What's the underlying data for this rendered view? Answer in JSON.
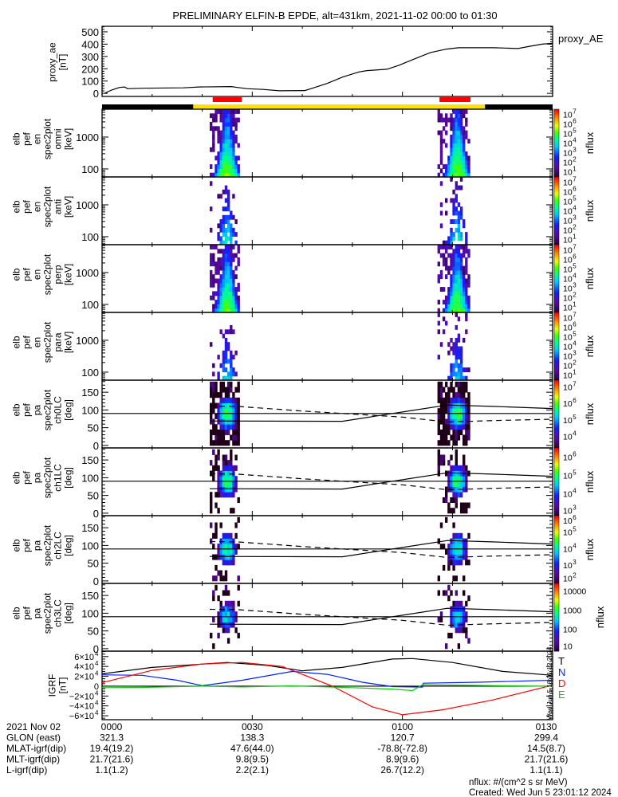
{
  "chart_data": {
    "type": "multi-panel",
    "title": "PRELIMINARY ELFIN-B EPDE, alt=431km, 2021-11-02 00:00 to 01:30",
    "time_range_min": [
      0,
      90
    ],
    "x_ticks": [
      "0000",
      "0030",
      "0100",
      "0130"
    ],
    "orbit_strip": {
      "colors": {
        "outside": "#000000",
        "science": "#ffe000",
        "marker": "#ff0000"
      },
      "science_interval_min": [
        18.2,
        76.5
      ],
      "markers_min": [
        [
          22.1,
          27.9
        ],
        [
          67.4,
          73.6
        ]
      ]
    },
    "proxy_ae": {
      "ylabel": [
        "proxy_ae",
        "[nT]"
      ],
      "legend": "proxy_AE",
      "ylim": [
        -25,
        545
      ],
      "yticks": [
        {
          "v": 0,
          "label": "0"
        },
        {
          "v": 100,
          "label": "100"
        },
        {
          "v": 200,
          "label": "200"
        },
        {
          "v": 300,
          "label": "300"
        },
        {
          "v": 400,
          "label": "400"
        },
        {
          "v": 500,
          "label": "500"
        }
      ],
      "t": [
        0.5,
        1.9,
        3.5,
        4.5,
        5.1,
        8.3,
        16.2,
        19.4,
        25.8,
        27,
        29,
        32.2,
        35.4,
        40.5,
        41.7,
        44.9,
        48.1,
        51.3,
        52.9,
        56.9,
        59.3,
        62.4,
        65.6,
        68.8,
        71.2,
        78.4,
        83.1,
        85.5,
        87.9,
        90
      ],
      "v": [
        0,
        27,
        48,
        52,
        38,
        42,
        45,
        52,
        55,
        48,
        38,
        32,
        21,
        23,
        38,
        80,
        133,
        174,
        185,
        196,
        228,
        280,
        332,
        360,
        371,
        371,
        364,
        383,
        400,
        407
      ]
    },
    "energy_panels": [
      {
        "name": "omni",
        "ylabel": [
          "elb",
          "pef",
          "en",
          "spec2plot",
          "omni",
          "[keV]"
        ],
        "peak_log_nflux": 5.4,
        "sparse": false
      },
      {
        "name": "anti",
        "ylabel": [
          "elb",
          "pef",
          "en",
          "spec2plot",
          "anti",
          "[keV]"
        ],
        "peak_log_nflux": 4.3,
        "sparse": true
      },
      {
        "name": "perp",
        "ylabel": [
          "elb",
          "pef",
          "en",
          "spec2plot",
          "perp",
          "[keV]"
        ],
        "peak_log_nflux": 5.3,
        "sparse": false
      },
      {
        "name": "para",
        "ylabel": [
          "elb",
          "pef",
          "en",
          "spec2plot",
          "para",
          "[keV]"
        ],
        "peak_log_nflux": 3.9,
        "sparse": true
      }
    ],
    "energy_axis": {
      "ylim_keV": [
        56,
        7500
      ],
      "yticks": [
        {
          "v": 100,
          "label": "100"
        },
        {
          "v": 1000,
          "label": "1000"
        }
      ]
    },
    "energy_colorbar": {
      "label": "nflux",
      "log_range": [
        0.9,
        7.5
      ],
      "ticks": [
        {
          "e": 1,
          "base": "10",
          "exp": "1"
        },
        {
          "e": 2,
          "base": "10",
          "exp": "2"
        },
        {
          "e": 3,
          "base": "10",
          "exp": "3"
        },
        {
          "e": 4,
          "base": "10",
          "exp": "4"
        },
        {
          "e": 5,
          "base": "10",
          "exp": "5"
        },
        {
          "e": 6,
          "base": "10",
          "exp": "6"
        },
        {
          "e": 7,
          "base": "10",
          "exp": "7"
        }
      ]
    },
    "events": [
      {
        "t_min": [
          21.5,
          27.5
        ],
        "center_min": 25
      },
      {
        "t_min": [
          67,
          73.5
        ],
        "center_min": 71
      }
    ],
    "pa_panels": [
      {
        "name": "ch0LC",
        "ylabel": [
          "elb",
          "pef",
          "pa",
          "spec2plot",
          "ch0LC",
          "[deg]"
        ],
        "peak_log_nflux": 5.8,
        "log_range": [
          3.3,
          7.4
        ],
        "cbar_ticks": [
          {
            "e": 4,
            "base": "10",
            "exp": "4"
          },
          {
            "e": 5,
            "base": "10",
            "exp": "5"
          },
          {
            "e": 6,
            "base": "10",
            "exp": "6"
          },
          {
            "e": 7,
            "base": "10",
            "exp": "7"
          }
        ]
      },
      {
        "name": "ch1LC",
        "ylabel": [
          "elb",
          "pef",
          "pa",
          "spec2plot",
          "ch1LC",
          "[deg]"
        ],
        "peak_log_nflux": 5.0,
        "log_range": [
          2.8,
          6.5
        ],
        "cbar_ticks": [
          {
            "e": 3,
            "base": "10",
            "exp": "3"
          },
          {
            "e": 4,
            "base": "10",
            "exp": "4"
          },
          {
            "e": 5,
            "base": "10",
            "exp": "5"
          },
          {
            "e": 6,
            "base": "10",
            "exp": "6"
          }
        ]
      },
      {
        "name": "ch2LC",
        "ylabel": [
          "elb",
          "pef",
          "pa",
          "spec2plot",
          "ch2LC",
          "[deg]"
        ],
        "peak_log_nflux": 4.1,
        "log_range": [
          1.9,
          6.0
        ],
        "cbar_ticks": [
          {
            "e": 2,
            "base": "10",
            "exp": "2"
          },
          {
            "e": 3,
            "base": "10",
            "exp": "3"
          },
          {
            "e": 4,
            "base": "10",
            "exp": "4"
          },
          {
            "e": 5,
            "base": "10",
            "exp": "5"
          },
          {
            "e": 6,
            "base": "10",
            "exp": "6"
          }
        ]
      },
      {
        "name": "ch3LC",
        "ylabel": [
          "elb",
          "pef",
          "pa",
          "spec2plot",
          "ch3LC",
          "[deg]"
        ],
        "peak_log_nflux": 2.6,
        "log_range": [
          0.85,
          4.4
        ],
        "cbar_ticks": [
          {
            "e": 1,
            "base": "10",
            "exp": ""
          },
          {
            "e": 2,
            "base": "100",
            "exp": ""
          },
          {
            "e": 3,
            "base": "1000",
            "exp": ""
          },
          {
            "e": 4,
            "base": "10000",
            "exp": ""
          }
        ]
      }
    ],
    "pa_axis": {
      "ylim_deg": [
        -7,
        184
      ],
      "reference_deg": 90,
      "yticks": [
        {
          "v": 0,
          "label": "0"
        },
        {
          "v": 50,
          "label": "50"
        },
        {
          "v": 100,
          "label": "100"
        },
        {
          "v": 150,
          "label": "150"
        }
      ],
      "loss_cone_solid": {
        "t": [
          21.5,
          48,
          58,
          69,
          78,
          90
        ],
        "deg": [
          69,
          68,
          90,
          114,
          110,
          104
        ]
      },
      "loss_cone_dashed": {
        "t": [
          21.5,
          27,
          40,
          48,
          60,
          69,
          78,
          90
        ],
        "deg": [
          111,
          110,
          97,
          90,
          80,
          66,
          70,
          74
        ]
      }
    },
    "igrf": {
      "ylabel": [
        "IGRF",
        "[nT]"
      ],
      "ylim": [
        -68000,
        71000
      ],
      "yticks": [
        {
          "v": 60000,
          "label": "6×10",
          "exp": "4"
        },
        {
          "v": 40000,
          "label": "4×10",
          "exp": "4"
        },
        {
          "v": 20000,
          "label": "2×10",
          "exp": "4"
        },
        {
          "v": 0,
          "label": "0",
          "exp": ""
        },
        {
          "v": -20000,
          "label": "−2×10",
          "exp": "4"
        },
        {
          "v": -40000,
          "label": "−4×10",
          "exp": "4"
        },
        {
          "v": -60000,
          "label": "−6×10",
          "exp": "4"
        }
      ],
      "series": [
        {
          "name": "T",
          "color": "#000000",
          "t": [
            0,
            10,
            25,
            33,
            40,
            48,
            58,
            62,
            70,
            80,
            90
          ],
          "v": [
            25000,
            38000,
            48000,
            42000,
            31000,
            38000,
            55000,
            56000,
            48000,
            30000,
            22000
          ]
        },
        {
          "name": "N",
          "color": "#0020ff",
          "t": [
            0,
            8,
            15,
            20,
            28,
            38,
            45,
            52,
            58,
            64,
            64.2,
            75,
            90
          ],
          "v": [
            23000,
            22000,
            12000,
            1000,
            12000,
            30000,
            24000,
            8000,
            -1000,
            -2000,
            6000,
            8000,
            12000
          ]
        },
        {
          "name": "D",
          "color": "#ff0000",
          "t": [
            0,
            10,
            20,
            28,
            36,
            46,
            54,
            60,
            68,
            78,
            90
          ],
          "v": [
            7000,
            32000,
            45000,
            48000,
            40000,
            0,
            -42000,
            -58000,
            -48000,
            -28000,
            2000
          ]
        },
        {
          "name": "E",
          "color": "#00d000",
          "t": [
            0,
            8,
            20,
            28,
            38,
            50,
            58,
            62,
            64,
            75,
            90
          ],
          "v": [
            -3000,
            -2500,
            0,
            -1500,
            500,
            -3000,
            -6000,
            -9000,
            3000,
            1500,
            -500
          ]
        }
      ],
      "side_stamp": "Wed Jun  5 18:01:12 2024"
    }
  },
  "footer": {
    "rows": [
      {
        "label": "2021 Nov 02",
        "values": [
          "0000",
          "0030",
          "0100",
          "0130"
        ]
      },
      {
        "label": "GLON (east)",
        "values": [
          "321.3",
          "138.3",
          "120.7",
          "299.4"
        ]
      },
      {
        "label": "MLAT-igrf(dip)",
        "values": [
          "19.4(19.2)",
          "47.6(44.0)",
          "-78.8(-72.8)",
          "14.5(8.7)"
        ]
      },
      {
        "label": "MLT-igrf(dip)",
        "values": [
          "21.7(21.6)",
          "9.8(9.5)",
          "8.9(9.6)",
          "21.7(21.6)"
        ]
      },
      {
        "label": "L-igrf(dip)",
        "values": [
          "1.1(1.2)",
          "2.2(2.1)",
          "26.7(12.2)",
          "1.1(1.1)"
        ]
      }
    ],
    "units_note": "nflux: #/(cm^2 s sr MeV)",
    "created": "Created: Wed Jun  5 23:01:12 2024"
  }
}
